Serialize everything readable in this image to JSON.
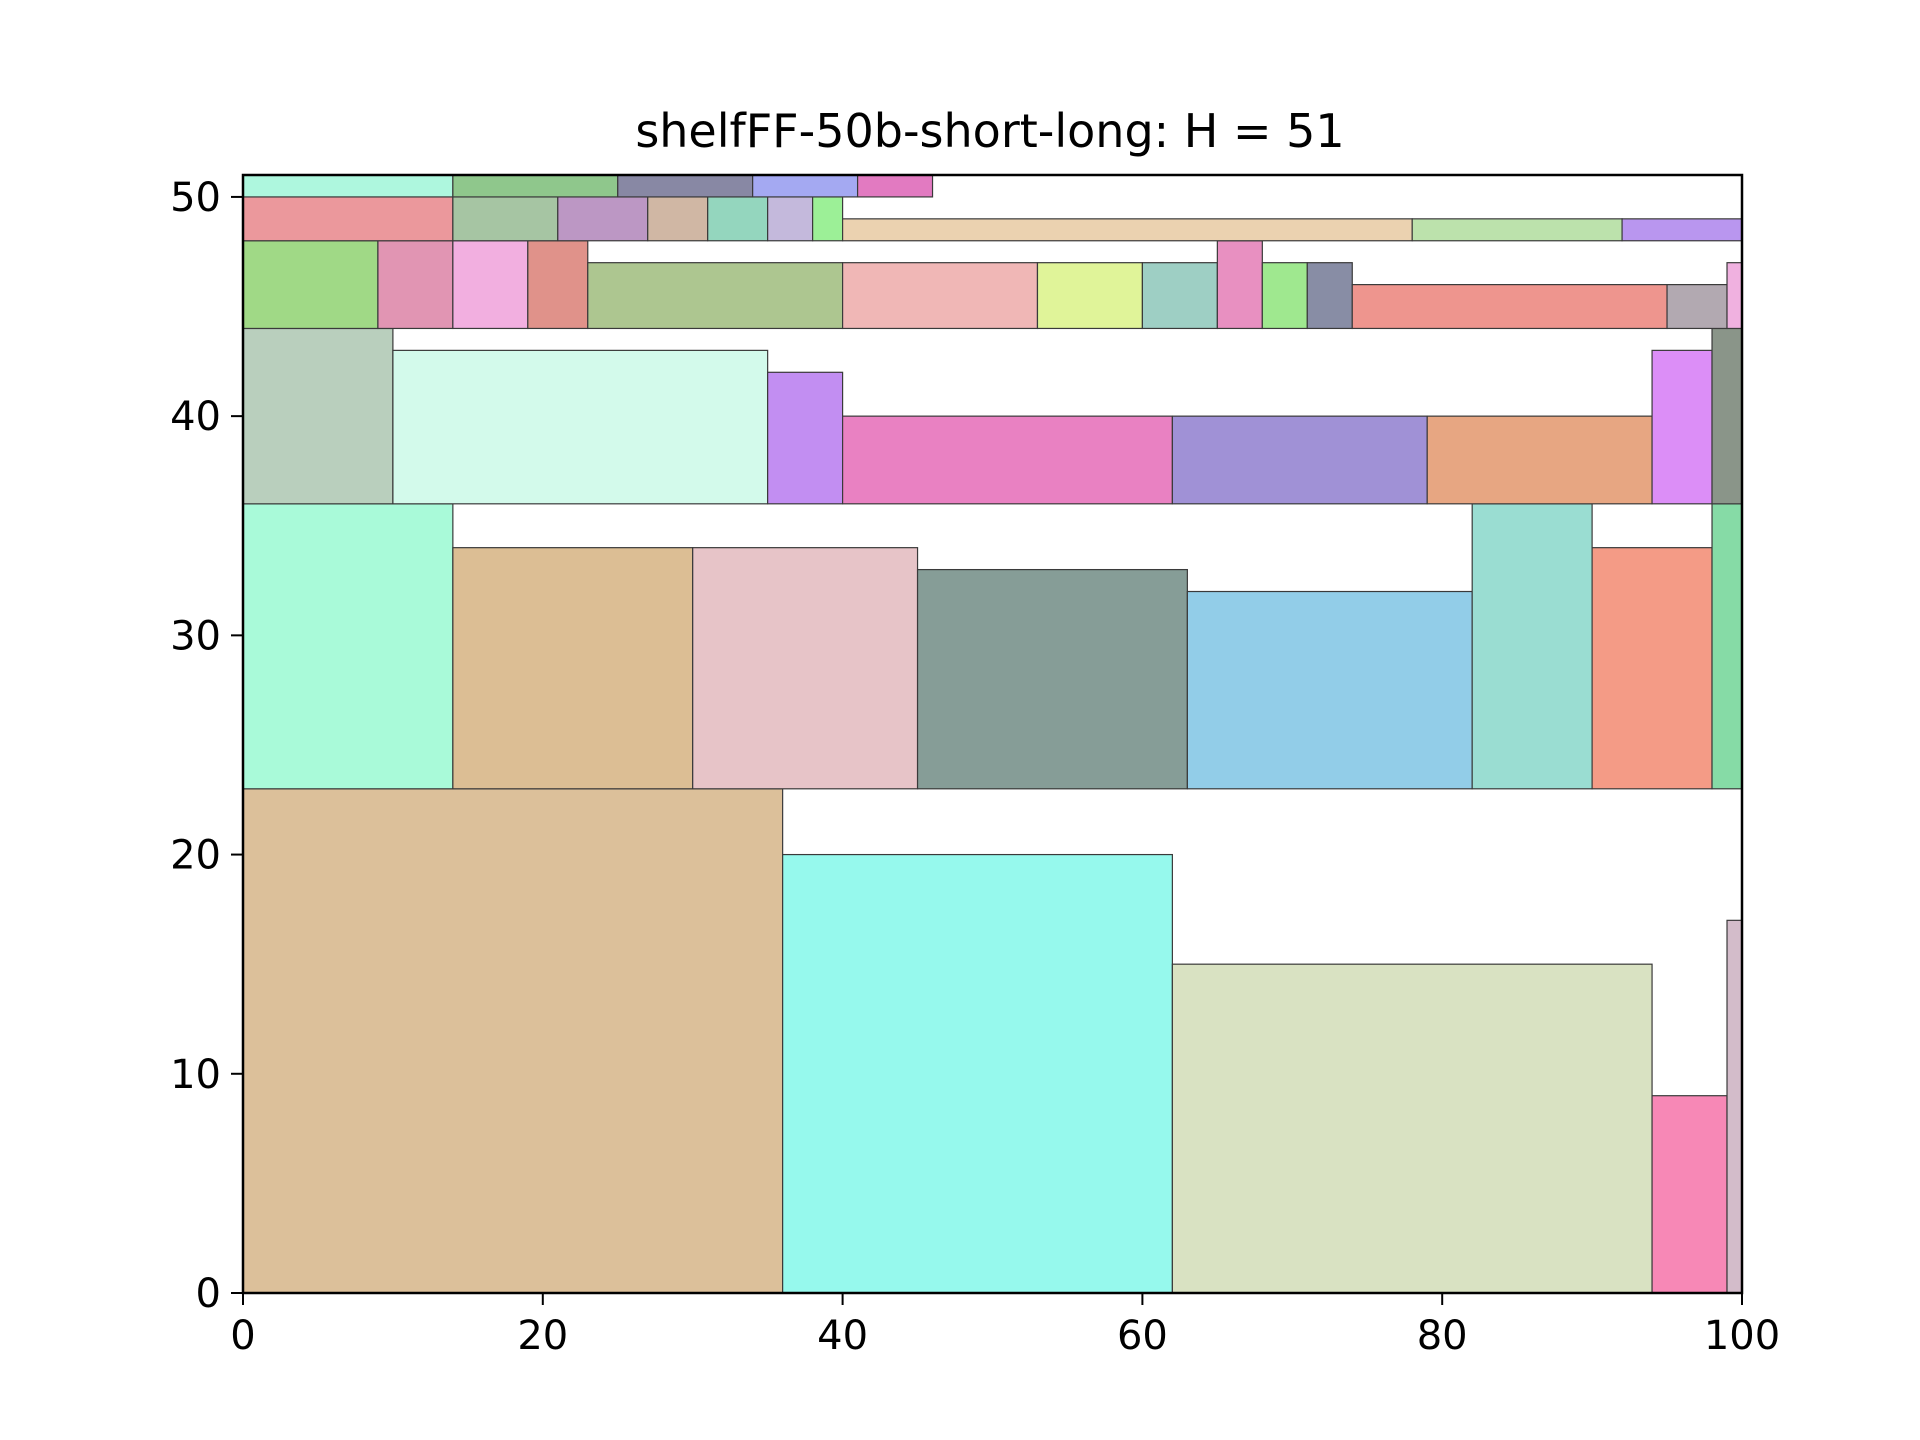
{
  "chart_data": {
    "type": "rectangle-packing",
    "title": "shelfFF-50b-short-long: H = 51",
    "xlim": [
      0,
      100
    ],
    "ylim": [
      0,
      51
    ],
    "x_ticks": [
      0,
      20,
      40,
      60,
      80,
      100
    ],
    "y_ticks": [
      0,
      10,
      20,
      30,
      40,
      50
    ],
    "grid": false,
    "rectangles": [
      {
        "x": 0,
        "y": 0,
        "w": 36,
        "h": 23,
        "color": "#dcc09a"
      },
      {
        "x": 36,
        "y": 0,
        "w": 26,
        "h": 20,
        "color": "#96f9ed"
      },
      {
        "x": 62,
        "y": 0,
        "w": 32,
        "h": 15,
        "color": "#d9e2c2"
      },
      {
        "x": 94,
        "y": 0,
        "w": 5,
        "h": 9,
        "color": "#f788b6"
      },
      {
        "x": 99,
        "y": 0,
        "w": 1,
        "h": 17,
        "color": "#d3bcca"
      },
      {
        "x": 0,
        "y": 23,
        "w": 14,
        "h": 13,
        "color": "#a9fad9"
      },
      {
        "x": 14,
        "y": 23,
        "w": 16,
        "h": 11,
        "color": "#dcbe94"
      },
      {
        "x": 30,
        "y": 23,
        "w": 15,
        "h": 11,
        "color": "#e7c4c8"
      },
      {
        "x": 45,
        "y": 23,
        "w": 18,
        "h": 10,
        "color": "#869d97"
      },
      {
        "x": 63,
        "y": 23,
        "w": 19,
        "h": 9,
        "color": "#92cde8"
      },
      {
        "x": 82,
        "y": 23,
        "w": 8,
        "h": 13,
        "color": "#9addd2"
      },
      {
        "x": 90,
        "y": 23,
        "w": 8,
        "h": 11,
        "color": "#f49b86"
      },
      {
        "x": 98,
        "y": 23,
        "w": 2,
        "h": 13,
        "color": "#86dba6"
      },
      {
        "x": 0,
        "y": 36,
        "w": 10,
        "h": 8,
        "color": "#b9cfbd"
      },
      {
        "x": 10,
        "y": 36,
        "w": 25,
        "h": 7,
        "color": "#d3faeb"
      },
      {
        "x": 35,
        "y": 36,
        "w": 5,
        "h": 6,
        "color": "#c28ef2"
      },
      {
        "x": 40,
        "y": 36,
        "w": 22,
        "h": 4,
        "color": "#e981c2"
      },
      {
        "x": 62,
        "y": 36,
        "w": 17,
        "h": 4,
        "color": "#a091d6"
      },
      {
        "x": 79,
        "y": 36,
        "w": 15,
        "h": 4,
        "color": "#e7a682"
      },
      {
        "x": 94,
        "y": 36,
        "w": 4,
        "h": 7,
        "color": "#dc8ef7"
      },
      {
        "x": 98,
        "y": 36,
        "w": 2,
        "h": 8,
        "color": "#8a9589"
      },
      {
        "x": 0,
        "y": 44,
        "w": 9,
        "h": 4,
        "color": "#a0d986"
      },
      {
        "x": 9,
        "y": 44,
        "w": 5,
        "h": 4,
        "color": "#e195b3"
      },
      {
        "x": 14,
        "y": 44,
        "w": 5,
        "h": 4,
        "color": "#f2afe0"
      },
      {
        "x": 19,
        "y": 44,
        "w": 4,
        "h": 4,
        "color": "#e0928a"
      },
      {
        "x": 23,
        "y": 44,
        "w": 17,
        "h": 3,
        "color": "#adc690"
      },
      {
        "x": 40,
        "y": 44,
        "w": 13,
        "h": 3,
        "color": "#f0b7b6"
      },
      {
        "x": 53,
        "y": 44,
        "w": 7,
        "h": 3,
        "color": "#e0f499"
      },
      {
        "x": 60,
        "y": 44,
        "w": 5,
        "h": 3,
        "color": "#9ecfc4"
      },
      {
        "x": 65,
        "y": 44,
        "w": 3,
        "h": 4,
        "color": "#e890c1"
      },
      {
        "x": 68,
        "y": 44,
        "w": 3,
        "h": 3,
        "color": "#9fe88f"
      },
      {
        "x": 71,
        "y": 44,
        "w": 3,
        "h": 3,
        "color": "#888da5"
      },
      {
        "x": 74,
        "y": 44,
        "w": 21,
        "h": 2,
        "color": "#ee958e"
      },
      {
        "x": 95,
        "y": 44,
        "w": 4,
        "h": 2,
        "color": "#b2a9b1"
      },
      {
        "x": 99,
        "y": 44,
        "w": 1,
        "h": 3,
        "color": "#f0b1e0"
      },
      {
        "x": 0,
        "y": 48,
        "w": 14,
        "h": 2,
        "color": "#eb989c"
      },
      {
        "x": 14,
        "y": 48,
        "w": 7,
        "h": 2,
        "color": "#a6c5a3"
      },
      {
        "x": 21,
        "y": 48,
        "w": 6,
        "h": 2,
        "color": "#bc97c4"
      },
      {
        "x": 27,
        "y": 48,
        "w": 4,
        "h": 2,
        "color": "#d0b7a4"
      },
      {
        "x": 31,
        "y": 48,
        "w": 4,
        "h": 2,
        "color": "#94d6be"
      },
      {
        "x": 35,
        "y": 48,
        "w": 3,
        "h": 2,
        "color": "#c4b9dc"
      },
      {
        "x": 38,
        "y": 48,
        "w": 2,
        "h": 2,
        "color": "#9cf097"
      },
      {
        "x": 40,
        "y": 48,
        "w": 38,
        "h": 1,
        "color": "#ebd2b0"
      },
      {
        "x": 78,
        "y": 48,
        "w": 14,
        "h": 1,
        "color": "#bce2ac"
      },
      {
        "x": 92,
        "y": 48,
        "w": 8,
        "h": 1,
        "color": "#b996ef"
      },
      {
        "x": 0,
        "y": 50,
        "w": 14,
        "h": 1,
        "color": "#aef7de"
      },
      {
        "x": 14,
        "y": 50,
        "w": 11,
        "h": 1,
        "color": "#8fc78c"
      },
      {
        "x": 25,
        "y": 50,
        "w": 9,
        "h": 1,
        "color": "#8888a4"
      },
      {
        "x": 34,
        "y": 50,
        "w": 7,
        "h": 1,
        "color": "#a4a9f2"
      },
      {
        "x": 41,
        "y": 50,
        "w": 5,
        "h": 1,
        "color": "#e27ac1"
      }
    ]
  }
}
